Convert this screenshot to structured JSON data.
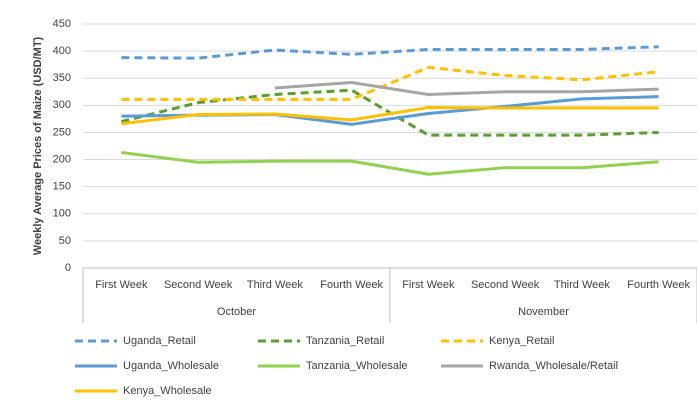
{
  "chart_data": {
    "type": "line",
    "y_label": "Weekly Average Prices of Maize (USD/MT)",
    "categories": [
      "First Week",
      "Second Week",
      "Third  Week",
      "Fourth Week",
      "First Week",
      "Second Week",
      "Third  Week",
      "Fourth Week"
    ],
    "groups": [
      {
        "label": "October",
        "size": 4
      },
      {
        "label": "November",
        "size": 4
      }
    ],
    "ylim": [
      0,
      450
    ],
    "yticks": [
      0,
      50,
      100,
      150,
      200,
      250,
      300,
      350,
      400,
      450
    ],
    "grid": true,
    "series": [
      {
        "name": "Uganda_Retail",
        "color": "#5b9bd5",
        "dash": true,
        "values": [
          388,
          387,
          402,
          394,
          403,
          403,
          403,
          408
        ]
      },
      {
        "name": "Tanzania_Retail",
        "color": "#5a9e32",
        "dash": true,
        "values": [
          270,
          305,
          320,
          328,
          245,
          245,
          245,
          250
        ]
      },
      {
        "name": "Kenya_Retail",
        "color": "#ffc000",
        "dash": true,
        "values": [
          311,
          311,
          311,
          311,
          370,
          355,
          347,
          362
        ]
      },
      {
        "name": "Uganda_Wholesale",
        "color": "#5b9bd5",
        "dash": false,
        "values": [
          280,
          282,
          283,
          265,
          285,
          298,
          312,
          316
        ]
      },
      {
        "name": "Tanzania_Wholesale",
        "color": "#92d050",
        "dash": false,
        "values": [
          213,
          195,
          197,
          197,
          173,
          185,
          185,
          196
        ]
      },
      {
        "name": "Rwanda_Wholesale/Retail",
        "color": "#a5a5a5",
        "dash": false,
        "values": [
          null,
          null,
          332,
          342,
          320,
          325,
          325,
          330
        ]
      },
      {
        "name": "Kenya_Wholesale",
        "color": "#ffc000",
        "dash": false,
        "values": [
          266,
          283,
          284,
          273,
          296,
          295,
          295,
          295
        ]
      }
    ]
  }
}
